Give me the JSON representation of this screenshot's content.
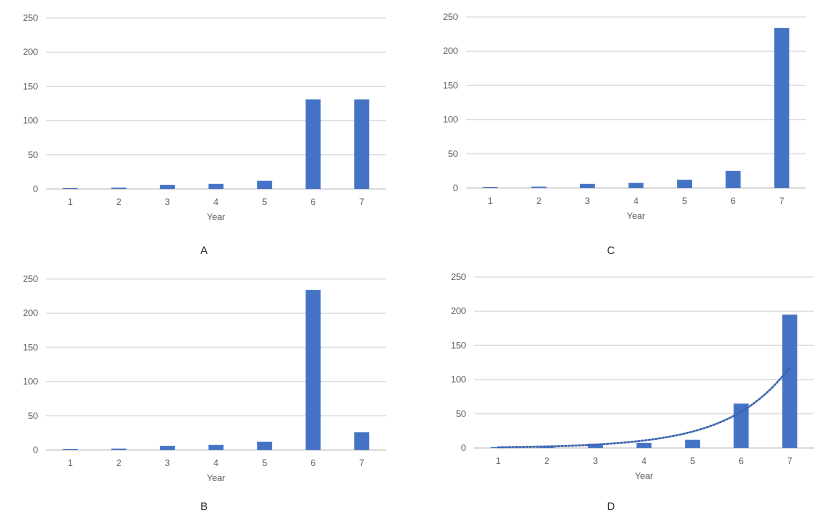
{
  "charts": [
    {
      "id": "A",
      "caption": "A",
      "chart_data": {
        "type": "bar",
        "categories": [
          "1",
          "2",
          "3",
          "4",
          "5",
          "6",
          "7"
        ],
        "values": [
          1.5,
          2,
          6,
          7.5,
          12,
          131,
          131
        ],
        "xlabel": "Year",
        "ylabel": "",
        "ylim": [
          0,
          250
        ],
        "yticks": [
          0,
          50,
          100,
          150,
          200,
          250
        ],
        "grid": true,
        "bar_color": "#4472C4"
      }
    },
    {
      "id": "C",
      "caption": "C",
      "chart_data": {
        "type": "bar",
        "categories": [
          "1",
          "2",
          "3",
          "4",
          "5",
          "6",
          "7"
        ],
        "values": [
          1.5,
          2,
          6,
          7.5,
          12,
          25,
          234
        ],
        "xlabel": "Year",
        "ylabel": "",
        "ylim": [
          0,
          250
        ],
        "yticks": [
          0,
          50,
          100,
          150,
          200,
          250
        ],
        "grid": true,
        "bar_color": "#4472C4"
      }
    },
    {
      "id": "B",
      "caption": "B",
      "chart_data": {
        "type": "bar",
        "categories": [
          "1",
          "2",
          "3",
          "4",
          "5",
          "6",
          "7"
        ],
        "values": [
          1.5,
          2,
          6,
          7.5,
          12,
          234,
          26
        ],
        "xlabel": "Year",
        "ylabel": "",
        "ylim": [
          0,
          250
        ],
        "yticks": [
          0,
          50,
          100,
          150,
          200,
          250
        ],
        "grid": true,
        "bar_color": "#4472C4"
      }
    },
    {
      "id": "D",
      "caption": "D",
      "chart_data": {
        "type": "bar",
        "categories": [
          "1",
          "2",
          "3",
          "4",
          "5",
          "6",
          "7"
        ],
        "values": [
          1.5,
          2,
          6,
          7.5,
          12,
          65,
          195
        ],
        "trendline": {
          "style": "dotted",
          "kind": "exponential",
          "values": [
            1,
            2.3,
            5,
            11,
            24,
            53,
            118
          ]
        },
        "xlabel": "Year",
        "ylabel": "",
        "ylim": [
          0,
          250
        ],
        "yticks": [
          0,
          50,
          100,
          150,
          200,
          250
        ],
        "grid": true,
        "bar_color": "#4472C4"
      }
    }
  ]
}
